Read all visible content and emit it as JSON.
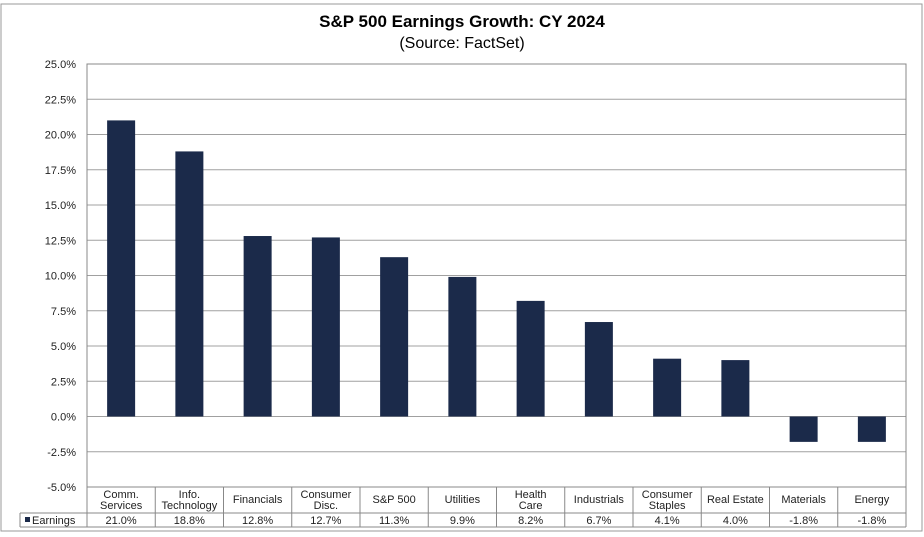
{
  "chart_data": {
    "type": "bar",
    "title": "S&P 500 Earnings Growth: CY 2024",
    "subtitle": "(Source: FactSet)",
    "xlabel": "",
    "ylabel": "",
    "ylim": [
      -5,
      25
    ],
    "yticks": [
      -5,
      -2.5,
      0,
      2.5,
      5,
      7.5,
      10,
      12.5,
      15,
      17.5,
      20,
      22.5,
      25
    ],
    "ytick_labels": [
      "-5.0%",
      "-2.5%",
      "0.0%",
      "2.5%",
      "5.0%",
      "7.5%",
      "10.0%",
      "12.5%",
      "15.0%",
      "17.5%",
      "20.0%",
      "22.5%",
      "25.0%"
    ],
    "grid": true,
    "legend_placement": "data-table-left",
    "categories": [
      [
        "Comm.",
        "Services"
      ],
      [
        "Info.",
        "Technology"
      ],
      [
        "Financials"
      ],
      [
        "Consumer",
        "Disc."
      ],
      [
        "S&P 500"
      ],
      [
        "Utilities"
      ],
      [
        "Health",
        "Care"
      ],
      [
        "Industrials"
      ],
      [
        "Consumer",
        "Staples"
      ],
      [
        "Real Estate"
      ],
      [
        "Materials"
      ],
      [
        "Energy"
      ]
    ],
    "series": [
      {
        "name": "Earnings",
        "color": "#1b2a4a",
        "values": [
          21.0,
          18.8,
          12.8,
          12.7,
          11.3,
          9.9,
          8.2,
          6.7,
          4.1,
          4.0,
          -1.8,
          -1.8
        ],
        "labels": [
          "21.0%",
          "18.8%",
          "12.8%",
          "12.7%",
          "11.3%",
          "9.9%",
          "8.2%",
          "6.7%",
          "4.1%",
          "4.0%",
          "-1.8%",
          "-1.8%"
        ]
      }
    ]
  }
}
